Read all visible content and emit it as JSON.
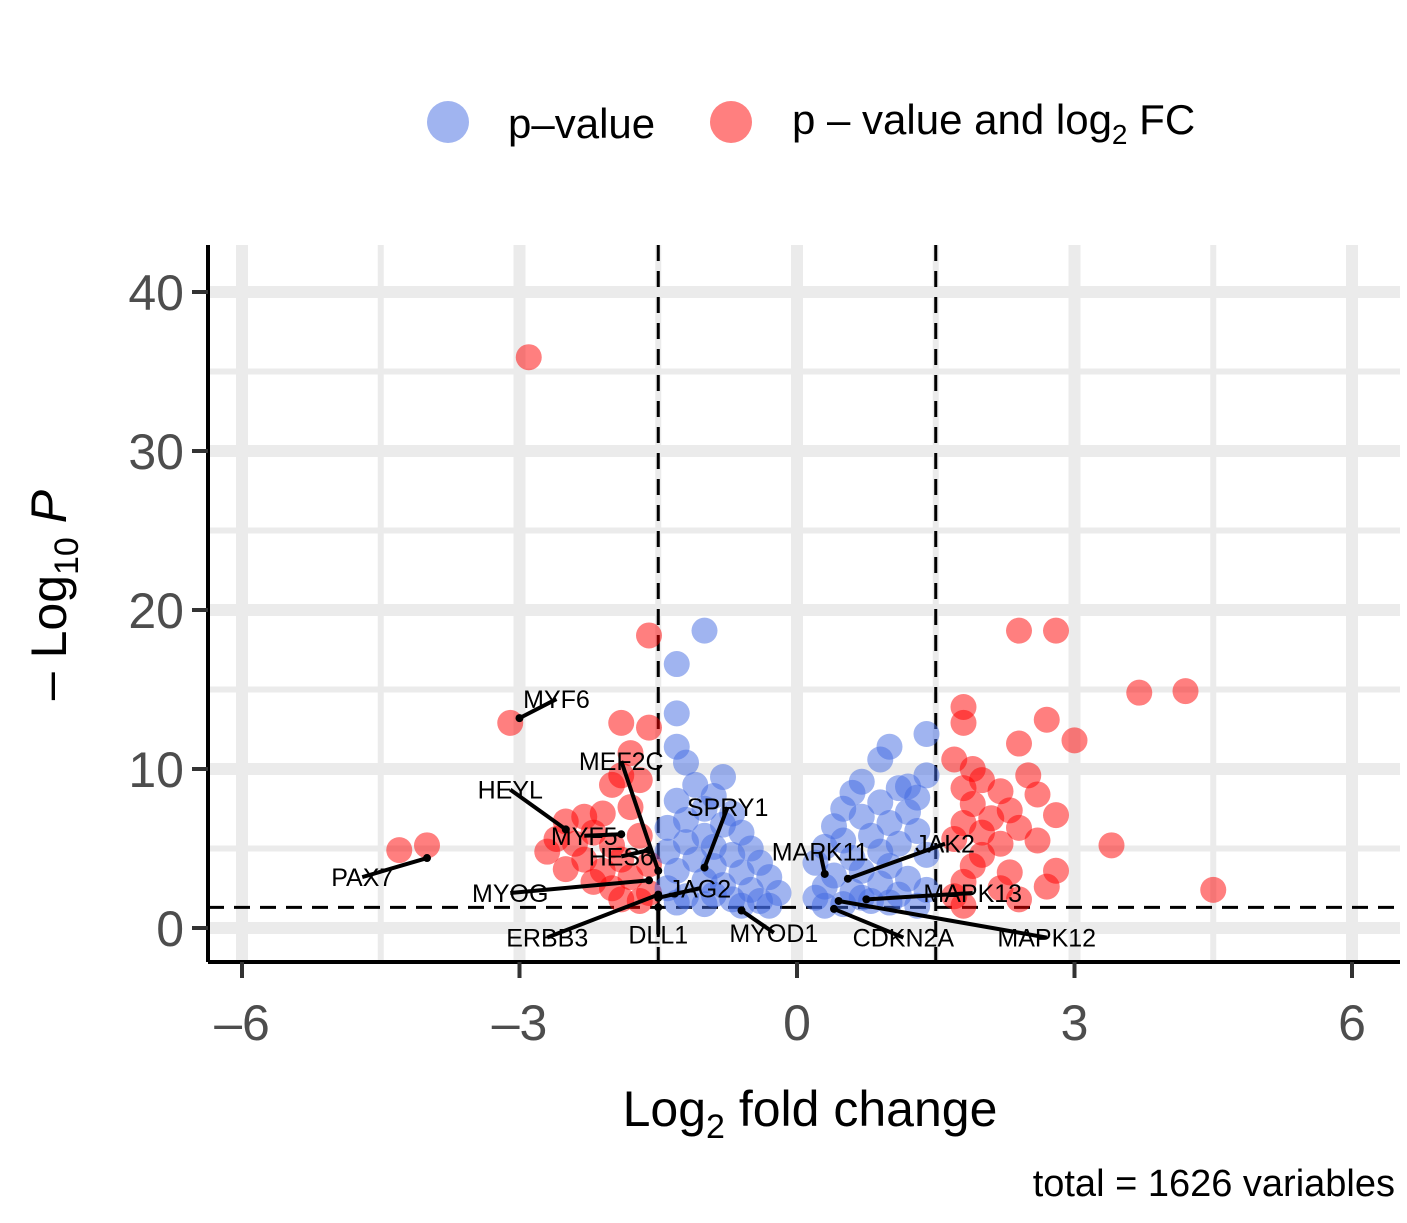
{
  "chart_data": {
    "type": "scatter",
    "subtype": "volcano",
    "title": "",
    "xlabel": {
      "base": "Log",
      "sub": "2",
      "rest": " fold change"
    },
    "ylabel": {
      "prefix": "– Log",
      "sub": "10",
      "rest": " P"
    },
    "caption": "total = 1626 variables",
    "xlim": [
      -6.2,
      6.2
    ],
    "ylim": [
      -2,
      43
    ],
    "x_ticks": [
      -6,
      -3,
      0,
      3,
      6
    ],
    "x_tick_labels": [
      "–6",
      "–3",
      "0",
      "3",
      "6"
    ],
    "y_ticks": [
      0,
      10,
      20,
      30,
      40
    ],
    "y_tick_labels": [
      "0",
      "10",
      "20",
      "30",
      "40"
    ],
    "grid": true,
    "thresholds": {
      "log2fc": [
        -1.5,
        1.5
      ],
      "neg_log10_p": 1.3
    },
    "legend": {
      "position": "top",
      "entries": [
        {
          "id": "p",
          "label": "p–value",
          "color": "#4169E1"
        },
        {
          "id": "pfc",
          "label": {
            "base": "p – value and log",
            "sub": "2",
            "rest": " FC"
          },
          "color": "#FF0000"
        }
      ]
    },
    "colors": {
      "p": "#4169E1",
      "pfc": "#FF0000",
      "grid": "#EBEBEB"
    },
    "series": [
      {
        "id": "pfc",
        "points": [
          [
            -2.9,
            35.9
          ],
          [
            -1.6,
            18.4
          ],
          [
            -3.1,
            12.9
          ],
          [
            -4.0,
            5.2
          ],
          [
            -4.3,
            4.9
          ],
          [
            -1.9,
            12.9
          ],
          [
            -1.6,
            12.6
          ],
          [
            -1.8,
            11.0
          ],
          [
            -1.9,
            9.6
          ],
          [
            -2.0,
            9.0
          ],
          [
            -1.7,
            9.3
          ],
          [
            -2.3,
            7.0
          ],
          [
            -2.5,
            6.7
          ],
          [
            -2.1,
            7.2
          ],
          [
            -1.8,
            7.6
          ],
          [
            -2.2,
            6.0
          ],
          [
            -2.6,
            5.6
          ],
          [
            -2.4,
            5.3
          ],
          [
            -2.0,
            5.2
          ],
          [
            -1.7,
            5.8
          ],
          [
            -2.7,
            4.8
          ],
          [
            -2.3,
            4.3
          ],
          [
            -1.9,
            4.3
          ],
          [
            -2.1,
            3.6
          ],
          [
            -1.6,
            4.0
          ],
          [
            -1.8,
            3.2
          ],
          [
            -2.0,
            2.5
          ],
          [
            -1.6,
            2.2
          ],
          [
            -1.9,
            1.8
          ],
          [
            -2.2,
            2.9
          ],
          [
            -2.5,
            3.7
          ],
          [
            -1.7,
            1.7
          ],
          [
            2.4,
            18.7
          ],
          [
            2.8,
            18.7
          ],
          [
            3.7,
            14.8
          ],
          [
            4.2,
            14.9
          ],
          [
            1.8,
            13.9
          ],
          [
            1.8,
            12.9
          ],
          [
            2.7,
            13.1
          ],
          [
            3.0,
            11.8
          ],
          [
            2.4,
            11.6
          ],
          [
            1.7,
            10.6
          ],
          [
            1.9,
            10.0
          ],
          [
            2.0,
            9.3
          ],
          [
            2.5,
            9.6
          ],
          [
            1.8,
            8.8
          ],
          [
            2.2,
            8.6
          ],
          [
            2.6,
            8.4
          ],
          [
            1.9,
            7.8
          ],
          [
            2.3,
            7.4
          ],
          [
            2.8,
            7.1
          ],
          [
            2.1,
            6.9
          ],
          [
            1.8,
            6.6
          ],
          [
            2.4,
            6.3
          ],
          [
            2.0,
            6.0
          ],
          [
            1.7,
            5.6
          ],
          [
            2.2,
            5.3
          ],
          [
            2.6,
            5.5
          ],
          [
            3.4,
            5.2
          ],
          [
            2.0,
            4.6
          ],
          [
            1.9,
            3.9
          ],
          [
            2.3,
            3.5
          ],
          [
            2.8,
            3.6
          ],
          [
            1.8,
            2.9
          ],
          [
            2.2,
            2.5
          ],
          [
            2.7,
            2.6
          ],
          [
            1.7,
            2.0
          ],
          [
            4.5,
            2.4
          ],
          [
            2.4,
            1.8
          ],
          [
            1.8,
            1.4
          ]
        ]
      },
      {
        "id": "p",
        "points": [
          [
            -1.0,
            18.7
          ],
          [
            -1.3,
            16.6
          ],
          [
            -1.3,
            13.5
          ],
          [
            -1.3,
            11.4
          ],
          [
            -1.2,
            10.4
          ],
          [
            -0.8,
            9.5
          ],
          [
            -1.1,
            9.0
          ],
          [
            -0.9,
            8.3
          ],
          [
            -1.3,
            8.0
          ],
          [
            -1.0,
            7.5
          ],
          [
            -0.7,
            7.2
          ],
          [
            -1.2,
            6.8
          ],
          [
            -0.8,
            6.5
          ],
          [
            -1.4,
            6.3
          ],
          [
            -0.6,
            6.0
          ],
          [
            -1.0,
            5.8
          ],
          [
            -1.2,
            5.4
          ],
          [
            -0.9,
            5.1
          ],
          [
            -0.5,
            5.0
          ],
          [
            -1.4,
            4.8
          ],
          [
            -0.7,
            4.6
          ],
          [
            -1.1,
            4.3
          ],
          [
            -0.4,
            4.1
          ],
          [
            -0.9,
            3.9
          ],
          [
            -1.3,
            3.6
          ],
          [
            -0.6,
            3.5
          ],
          [
            -0.3,
            3.2
          ],
          [
            -1.0,
            3.0
          ],
          [
            -0.8,
            2.7
          ],
          [
            -1.4,
            2.5
          ],
          [
            -0.5,
            2.4
          ],
          [
            -0.2,
            2.2
          ],
          [
            -1.2,
            2.0
          ],
          [
            -0.7,
            1.8
          ],
          [
            -0.4,
            1.7
          ],
          [
            -1.0,
            1.5
          ],
          [
            -0.3,
            1.4
          ],
          [
            -0.6,
            1.4
          ],
          [
            -1.3,
            1.6
          ],
          [
            -0.9,
            2.1
          ],
          [
            1.4,
            12.2
          ],
          [
            1.0,
            11.4
          ],
          [
            0.9,
            10.6
          ],
          [
            1.4,
            9.6
          ],
          [
            0.7,
            9.2
          ],
          [
            1.1,
            8.8
          ],
          [
            0.6,
            8.5
          ],
          [
            1.3,
            8.2
          ],
          [
            0.9,
            7.9
          ],
          [
            0.5,
            7.5
          ],
          [
            1.2,
            7.3
          ],
          [
            0.7,
            7.0
          ],
          [
            1.0,
            6.6
          ],
          [
            0.4,
            6.4
          ],
          [
            1.3,
            6.1
          ],
          [
            0.8,
            5.8
          ],
          [
            0.5,
            5.5
          ],
          [
            1.1,
            5.3
          ],
          [
            0.3,
            5.1
          ],
          [
            0.9,
            4.8
          ],
          [
            1.4,
            4.6
          ],
          [
            0.6,
            4.4
          ],
          [
            0.2,
            4.1
          ],
          [
            1.0,
            3.9
          ],
          [
            0.7,
            3.6
          ],
          [
            0.4,
            3.3
          ],
          [
            1.2,
            3.1
          ],
          [
            0.9,
            2.8
          ],
          [
            0.3,
            2.6
          ],
          [
            0.6,
            2.3
          ],
          [
            1.1,
            2.1
          ],
          [
            0.2,
            1.9
          ],
          [
            0.8,
            1.7
          ],
          [
            0.5,
            1.5
          ],
          [
            1.3,
            1.4
          ],
          [
            0.3,
            1.4
          ],
          [
            1.0,
            1.6
          ],
          [
            1.4,
            2.4
          ],
          [
            0.7,
            1.9
          ],
          [
            1.2,
            8.9
          ]
        ]
      }
    ],
    "labels": [
      {
        "text": "MYF6",
        "x": -3.0,
        "y": 13.2,
        "lx": -2.6,
        "ly": 14.4
      },
      {
        "text": "MEF2C",
        "x": -1.5,
        "y": 3.6,
        "lx": -1.9,
        "ly": 10.5
      },
      {
        "text": "HEYL",
        "x": -2.5,
        "y": 6.2,
        "lx": -3.1,
        "ly": 8.7
      },
      {
        "text": "SPRY1",
        "x": -1.0,
        "y": 3.8,
        "lx": -0.75,
        "ly": 7.6
      },
      {
        "text": "MYF5",
        "x": -1.9,
        "y": 5.9,
        "lx": -2.3,
        "ly": 5.8
      },
      {
        "text": "HES6",
        "x": -1.6,
        "y": 4.9,
        "lx": -1.9,
        "ly": 4.5
      },
      {
        "text": "PAX7",
        "x": -4.0,
        "y": 4.4,
        "lx": -4.7,
        "ly": 3.2
      },
      {
        "text": "MYOG",
        "x": -1.6,
        "y": 3.0,
        "lx": -3.1,
        "ly": 2.2
      },
      {
        "text": "JAG2",
        "x": -1.5,
        "y": 1.9,
        "lx": -1.05,
        "ly": 2.5
      },
      {
        "text": "ERBB3",
        "x": -1.5,
        "y": 2.1,
        "lx": -2.7,
        "ly": -0.6
      },
      {
        "text": "DLL1",
        "x": -1.5,
        "y": 1.3,
        "lx": -1.5,
        "ly": -0.4
      },
      {
        "text": "MYOD1",
        "x": -0.6,
        "y": 1.1,
        "lx": -0.25,
        "ly": -0.3
      },
      {
        "text": "MAPK11",
        "x": 0.3,
        "y": 3.4,
        "lx": 0.25,
        "ly": 4.8
      },
      {
        "text": "JAK2",
        "x": 0.55,
        "y": 3.1,
        "lx": 1.6,
        "ly": 5.3
      },
      {
        "text": "MAPK13",
        "x": 0.75,
        "y": 1.8,
        "lx": 1.9,
        "ly": 2.2
      },
      {
        "text": "CDKN2A",
        "x": 0.4,
        "y": 1.2,
        "lx": 1.15,
        "ly": -0.6
      },
      {
        "text": "MAPK12",
        "x": 0.45,
        "y": 1.7,
        "lx": 2.7,
        "ly": -0.6
      }
    ]
  }
}
